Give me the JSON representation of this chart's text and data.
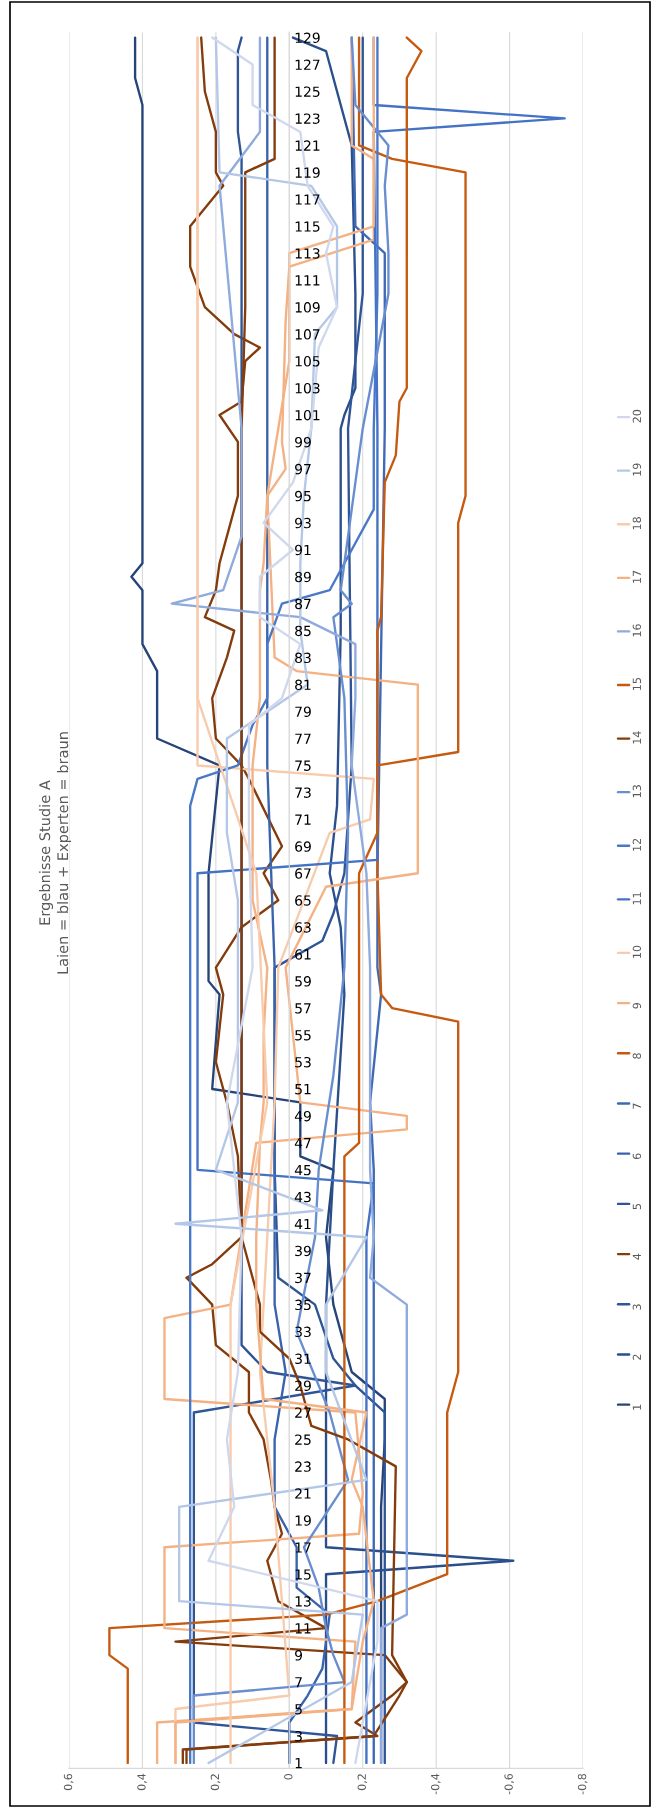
{
  "chart_data": {
    "type": "line",
    "title": "Ergebnisse Studie A",
    "subtitle": "Laien = blau + Experten = braun",
    "orientation": "horizontal",
    "legend": "right",
    "grid": "x",
    "xlim": [
      0.6,
      -0.8
    ],
    "xticks": [
      {
        "value": 0.6,
        "label": "0,6"
      },
      {
        "value": 0.4,
        "label": "0,4"
      },
      {
        "value": 0.2,
        "label": "0,2"
      },
      0,
      {
        "value": -0.2,
        "label": "0,2"
      },
      {
        "value": -0.4,
        "label": "-0,4"
      },
      {
        "value": -0.6,
        "label": "-0,6"
      },
      {
        "value": -0.8,
        "label": "-0,8"
      }
    ],
    "ylim": [
      0.6,
      129.4
    ],
    "yticks": [
      1,
      3,
      5,
      7,
      9,
      11,
      13,
      15,
      17,
      19,
      21,
      23,
      25,
      27,
      29,
      31,
      33,
      35,
      37,
      39,
      41,
      43,
      45,
      47,
      49,
      51,
      53,
      55,
      57,
      59,
      61,
      63,
      65,
      67,
      69,
      71,
      73,
      75,
      77,
      79,
      81,
      83,
      85,
      87,
      89,
      91,
      93,
      95,
      97,
      99,
      101,
      103,
      105,
      107,
      109,
      111,
      113,
      115,
      117,
      119,
      121,
      123,
      125,
      127,
      129
    ],
    "series": [
      {
        "name": "1",
        "color": "#264478",
        "x": [
          1,
          10,
          20,
          25,
          28,
          30,
          35,
          40,
          45,
          46,
          50,
          51,
          58,
          59,
          67,
          75,
          77,
          82,
          84,
          88,
          89,
          90,
          124,
          126,
          129
        ],
        "values": [
          -0.25,
          -0.25,
          -0.25,
          -0.26,
          -0.26,
          -0.17,
          -0.12,
          -0.1,
          -0.12,
          -0.03,
          -0.03,
          0.21,
          0.19,
          0.22,
          0.22,
          0.19,
          0.36,
          0.36,
          0.4,
          0.4,
          0.43,
          0.4,
          0.4,
          0.42,
          0.42
        ]
      },
      {
        "name": "2",
        "color": "#2b4f8c",
        "x": [
          1,
          15,
          16,
          17,
          35,
          45,
          58,
          63,
          67,
          72,
          85,
          100,
          101,
          103,
          110,
          121,
          125,
          127,
          128,
          129
        ],
        "values": [
          -0.1,
          -0.1,
          -0.61,
          -0.1,
          -0.1,
          -0.12,
          -0.15,
          -0.14,
          -0.11,
          -0.13,
          -0.14,
          -0.14,
          -0.15,
          -0.18,
          -0.18,
          -0.17,
          -0.13,
          -0.11,
          -0.1,
          -0.01
        ]
      },
      {
        "name": "3",
        "color": "#2f5597",
        "x": [
          1,
          3,
          4,
          27,
          29,
          31,
          35,
          37,
          45,
          60,
          62,
          64,
          67,
          75,
          100,
          110,
          129
        ],
        "values": [
          -0.12,
          -0.13,
          0.26,
          0.26,
          -0.18,
          -0.12,
          -0.07,
          0.03,
          0.04,
          0.04,
          -0.09,
          -0.12,
          -0.15,
          -0.17,
          -0.16,
          -0.2,
          -0.2
        ]
      },
      {
        "name": "4",
        "color": "#843c0c",
        "x": [
          1,
          2,
          3,
          4,
          6,
          7,
          9,
          10,
          11,
          13,
          16,
          18,
          20,
          22,
          25,
          27,
          30,
          32,
          35,
          37,
          38,
          40,
          46,
          50,
          53,
          58,
          60,
          63,
          65,
          67,
          69,
          74,
          75,
          77,
          80,
          83,
          85,
          86,
          88,
          90,
          93,
          95,
          99,
          101,
          102,
          105,
          106,
          107,
          109,
          112,
          115,
          118,
          119,
          122,
          125,
          129
        ],
        "values": [
          0.29,
          0.29,
          -0.24,
          -0.18,
          -0.28,
          -0.32,
          -0.26,
          0.31,
          -0.1,
          0.03,
          0.06,
          0.02,
          0.04,
          0.05,
          0.07,
          0.11,
          0.11,
          0.2,
          0.21,
          0.28,
          0.21,
          0.13,
          0.14,
          0.17,
          0.2,
          0.18,
          0.2,
          0.13,
          0.03,
          0.07,
          0.02,
          0.11,
          0.13,
          0.2,
          0.21,
          0.17,
          0.15,
          0.23,
          0.2,
          0.19,
          0.16,
          0.14,
          0.14,
          0.19,
          0.13,
          0.12,
          0.08,
          0.15,
          0.23,
          0.27,
          0.27,
          0.18,
          0.2,
          0.2,
          0.23,
          0.24
        ]
      },
      {
        "name": "5",
        "color": "#2f5597",
        "x": [
          1,
          27,
          29,
          30,
          32,
          120,
          122,
          128,
          129
        ],
        "values": [
          -0.26,
          -0.26,
          -0.18,
          0.06,
          0.13,
          0.13,
          0.14,
          0.14,
          0.13
        ]
      },
      {
        "name": "6",
        "color": "#3a63ad",
        "x": [
          1,
          4,
          6,
          8,
          10,
          12,
          14,
          17,
          20,
          25,
          30,
          35,
          45,
          60,
          75,
          90,
          110,
          129
        ],
        "values": [
          0.0,
          0.0,
          -0.05,
          -0.09,
          -0.1,
          -0.11,
          -0.02,
          -0.02,
          0.04,
          0.04,
          0.01,
          0.04,
          0.04,
          0.04,
          0.06,
          0.06,
          0.06,
          0.06
        ]
      },
      {
        "name": "7",
        "color": "#3f69b5",
        "x": [
          1,
          45,
          50,
          58,
          60,
          67,
          100,
          113,
          115,
          129
        ],
        "values": [
          -0.23,
          -0.23,
          -0.22,
          -0.25,
          -0.24,
          -0.24,
          -0.26,
          -0.26,
          -0.18,
          -0.17
        ]
      },
      {
        "name": "8",
        "color": "#c55a11",
        "x": [
          1,
          8,
          9,
          11,
          12,
          13,
          15,
          27,
          30,
          56,
          57,
          58,
          67,
          75,
          76,
          93,
          95,
          119,
          120,
          121,
          129
        ],
        "values": [
          0.44,
          0.44,
          0.49,
          0.49,
          -0.1,
          -0.24,
          -0.43,
          -0.43,
          -0.46,
          -0.46,
          -0.28,
          -0.25,
          -0.24,
          -0.24,
          -0.46,
          -0.46,
          -0.48,
          -0.48,
          -0.28,
          -0.19,
          -0.19
        ]
      },
      {
        "name": "9",
        "color": "#f4b183",
        "x": [
          1,
          4,
          5,
          10,
          11,
          17,
          18,
          21,
          27,
          28,
          34,
          35,
          47,
          48,
          49,
          50,
          60,
          66,
          67,
          81,
          82,
          83,
          95,
          97,
          99,
          108,
          112,
          114,
          120,
          121,
          129
        ],
        "values": [
          0.36,
          0.36,
          -0.17,
          -0.18,
          0.34,
          0.34,
          -0.19,
          -0.2,
          -0.18,
          0.34,
          0.34,
          0.16,
          0.09,
          -0.32,
          -0.32,
          -0.03,
          0.01,
          -0.1,
          -0.35,
          -0.35,
          -0.02,
          0.04,
          0.06,
          0.01,
          0.02,
          0.01,
          0.0,
          -0.23,
          -0.23,
          -0.17,
          -0.17
        ]
      },
      {
        "name": "10",
        "color": "#f8cbad",
        "x": [
          1,
          5,
          6,
          20,
          30,
          40,
          50,
          60,
          70,
          71,
          74,
          75,
          129
        ],
        "values": [
          0.31,
          0.31,
          0.0,
          0.04,
          0.08,
          0.06,
          0.04,
          0.03,
          -0.11,
          -0.22,
          -0.23,
          0.25,
          0.25
        ]
      },
      {
        "name": "11",
        "color": "#4472c4",
        "x": [
          1,
          20,
          40,
          44,
          45,
          67,
          68,
          100,
          122,
          123,
          124,
          129
        ],
        "values": [
          -0.21,
          -0.21,
          -0.21,
          -0.23,
          0.25,
          0.25,
          -0.24,
          -0.24,
          -0.23,
          -0.75,
          -0.23,
          -0.23
        ]
      },
      {
        "name": "12",
        "color": "#4a78c8",
        "x": [
          1,
          67,
          72,
          74,
          75,
          78,
          80,
          84,
          87,
          88,
          91,
          94,
          100,
          110,
          129
        ],
        "values": [
          0.27,
          0.27,
          0.27,
          0.25,
          0.14,
          0.1,
          0.06,
          0.06,
          0.02,
          -0.11,
          -0.17,
          -0.23,
          -0.23,
          -0.24,
          -0.24
        ]
      },
      {
        "name": "13",
        "color": "#698ed0",
        "x": [
          1,
          6,
          7,
          9,
          11,
          14,
          17,
          22,
          27,
          33,
          40,
          45,
          52,
          60,
          70,
          80,
          86,
          87,
          88,
          100,
          110,
          113,
          118,
          121,
          124,
          129
        ],
        "values": [
          0.26,
          0.26,
          -0.15,
          -0.12,
          -0.1,
          -0.08,
          -0.04,
          -0.16,
          -0.11,
          -0.02,
          -0.07,
          -0.08,
          -0.12,
          -0.15,
          -0.16,
          -0.15,
          -0.12,
          -0.17,
          -0.14,
          -0.2,
          -0.27,
          -0.27,
          -0.26,
          -0.27,
          -0.18,
          -0.17
        ]
      },
      {
        "name": "14",
        "color": "#843c0c",
        "x": [
          1,
          2,
          3,
          6,
          7,
          9,
          23,
          25,
          26,
          29,
          31,
          33,
          35,
          40,
          67,
          100,
          109,
          119,
          120,
          129
        ],
        "values": [
          0.28,
          0.28,
          -0.23,
          -0.3,
          -0.32,
          -0.28,
          -0.29,
          -0.16,
          -0.06,
          -0.03,
          0.0,
          0.08,
          0.08,
          0.13,
          0.13,
          0.13,
          0.12,
          0.12,
          0.04,
          0.04
        ]
      },
      {
        "name": "15",
        "color": "#c55a11",
        "x": [
          1,
          46,
          47,
          67,
          70,
          85,
          86,
          96,
          98,
          102,
          103,
          126,
          128,
          129
        ],
        "values": [
          -0.15,
          -0.15,
          -0.19,
          -0.19,
          -0.24,
          -0.24,
          -0.25,
          -0.26,
          -0.29,
          -0.3,
          -0.32,
          -0.32,
          -0.36,
          -0.32
        ]
      },
      {
        "name": "16",
        "color": "#8faadc",
        "x": [
          1,
          11,
          12,
          35,
          37,
          40,
          45,
          60,
          67,
          69,
          75,
          80,
          84,
          86,
          87,
          88,
          92,
          100,
          118,
          122,
          129
        ],
        "values": [
          -0.25,
          -0.25,
          -0.32,
          -0.32,
          -0.22,
          -0.23,
          -0.22,
          -0.22,
          -0.21,
          -0.2,
          -0.17,
          -0.18,
          -0.18,
          -0.03,
          0.32,
          0.18,
          0.13,
          0.13,
          0.19,
          0.08,
          0.08
        ]
      },
      {
        "name": "17",
        "color": "#f4b183",
        "x": [
          1,
          4,
          5,
          10,
          13,
          20,
          22,
          27,
          28,
          35,
          40,
          47,
          50,
          55,
          60,
          65,
          70,
          75,
          80,
          88,
          90,
          95,
          100,
          105,
          110,
          113,
          115,
          129
        ],
        "values": [
          0.31,
          0.31,
          -0.17,
          -0.2,
          -0.23,
          -0.2,
          -0.17,
          -0.21,
          0.07,
          0.09,
          0.09,
          0.08,
          0.07,
          0.07,
          0.06,
          0.1,
          0.1,
          0.1,
          0.08,
          0.08,
          0.07,
          0.06,
          0.03,
          0.0,
          0.0,
          0.0,
          -0.23,
          -0.23
        ]
      },
      {
        "name": "18",
        "color": "#f8cbad",
        "x": [
          1,
          35,
          50,
          67,
          80,
          100,
          129
        ],
        "values": [
          0.16,
          0.16,
          0.06,
          0.09,
          0.25,
          0.25,
          0.25
        ]
      },
      {
        "name": "19",
        "color": "#b4c7e7",
        "x": [
          1,
          7,
          12,
          13,
          20,
          22,
          30,
          35,
          40,
          41,
          42,
          45,
          50,
          60,
          65,
          70,
          77,
          79,
          81,
          85,
          90,
          95,
          100,
          107,
          109,
          115,
          118,
          119,
          129
        ],
        "values": [
          0.22,
          -0.17,
          -0.2,
          0.3,
          0.3,
          -0.21,
          -0.1,
          -0.1,
          -0.21,
          0.31,
          -0.09,
          0.2,
          0.14,
          0.14,
          0.14,
          0.17,
          0.17,
          0.06,
          -0.05,
          -0.03,
          -0.03,
          -0.04,
          -0.06,
          -0.07,
          -0.13,
          -0.13,
          -0.06,
          0.19,
          0.2
        ]
      },
      {
        "name": "20",
        "color": "#d0d8ee",
        "x": [
          1,
          10,
          13,
          16,
          20,
          25,
          30,
          40,
          50,
          60,
          70,
          78,
          80,
          84,
          86,
          89,
          91,
          93,
          96,
          100,
          106,
          109,
          113,
          115,
          118,
          122,
          124,
          127,
          129
        ],
        "values": [
          -0.18,
          -0.24,
          -0.24,
          0.22,
          0.15,
          0.17,
          0.14,
          0.13,
          0.17,
          0.1,
          0.11,
          0.11,
          0.02,
          -0.03,
          0.08,
          0.08,
          -0.01,
          0.07,
          -0.01,
          -0.06,
          -0.08,
          -0.13,
          -0.1,
          -0.12,
          -0.05,
          -0.03,
          0.1,
          0.1,
          0.21
        ]
      }
    ]
  }
}
